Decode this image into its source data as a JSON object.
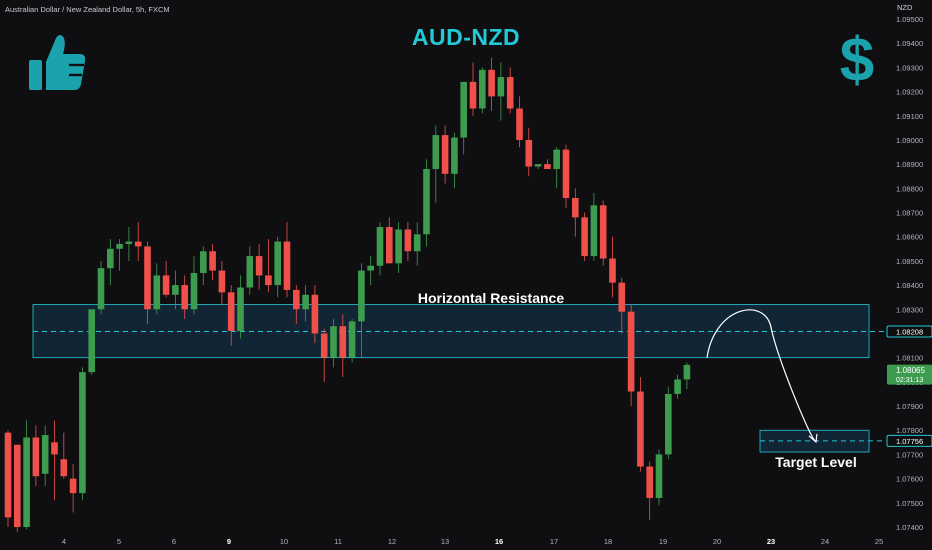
{
  "header": {
    "symbol_info": "Australian Dollar / New Zealand Dollar, 5h, FXCM",
    "title": "AUD-NZD"
  },
  "icons": {
    "left": "thumbs-up-icon",
    "right": "dollar-icon"
  },
  "colors": {
    "background": "#0f0f12",
    "bull": "#3e9c4f",
    "bear": "#f0504a",
    "accent": "#22c9d6",
    "zone_fill": "#12283a",
    "price_badge": "#3e9c4f"
  },
  "annotations": {
    "resistance_label": "Horizontal Resistance",
    "target_label": "Target Level"
  },
  "chart_data": {
    "type": "candlestick",
    "currency": "NZD",
    "ylim": [
      1.074,
      1.095
    ],
    "y_ticks": [
      "1.09500",
      "1.09400",
      "1.09300",
      "1.09200",
      "1.09100",
      "1.09000",
      "1.08900",
      "1.08800",
      "1.08700",
      "1.08600",
      "1.08500",
      "1.08400",
      "1.08300",
      "1.08200",
      "1.08100",
      "1.08000",
      "1.07900",
      "1.07800",
      "1.07700",
      "1.07600",
      "1.07500",
      "1.07400"
    ],
    "x_ticks": [
      {
        "label": "4",
        "bold": false
      },
      {
        "label": "5",
        "bold": false
      },
      {
        "label": "6",
        "bold": false
      },
      {
        "label": "9",
        "bold": true
      },
      {
        "label": "10",
        "bold": false
      },
      {
        "label": "11",
        "bold": false
      },
      {
        "label": "12",
        "bold": false
      },
      {
        "label": "13",
        "bold": false
      },
      {
        "label": "16",
        "bold": true
      },
      {
        "label": "17",
        "bold": false
      },
      {
        "label": "18",
        "bold": false
      },
      {
        "label": "19",
        "bold": false
      },
      {
        "label": "20",
        "bold": false
      },
      {
        "label": "23",
        "bold": true
      },
      {
        "label": "24",
        "bold": false
      },
      {
        "label": "25",
        "bold": false
      }
    ],
    "candles": [
      [
        1.0779,
        1.078,
        1.074,
        1.0744
      ],
      [
        1.0774,
        1.0774,
        1.0738,
        1.074
      ],
      [
        1.074,
        1.0784,
        1.0739,
        1.0777
      ],
      [
        1.0777,
        1.0782,
        1.0757,
        1.0761
      ],
      [
        1.0762,
        1.0782,
        1.0757,
        1.0778
      ],
      [
        1.0775,
        1.0784,
        1.0751,
        1.077
      ],
      [
        1.0768,
        1.0779,
        1.076,
        1.0761
      ],
      [
        1.076,
        1.0766,
        1.0746,
        1.0754
      ],
      [
        1.0754,
        1.0806,
        1.0751,
        1.0804
      ],
      [
        1.0804,
        1.083,
        1.0803,
        1.083
      ],
      [
        1.083,
        1.085,
        1.0828,
        1.0847
      ],
      [
        1.0847,
        1.0859,
        1.084,
        1.0855
      ],
      [
        1.0855,
        1.0859,
        1.0846,
        1.0857
      ],
      [
        1.0857,
        1.0864,
        1.085,
        1.0858
      ],
      [
        1.0858,
        1.0866,
        1.085,
        1.0856
      ],
      [
        1.0856,
        1.0858,
        1.0824,
        1.083
      ],
      [
        1.083,
        1.0849,
        1.0828,
        1.0844
      ],
      [
        1.0844,
        1.085,
        1.0835,
        1.0836
      ],
      [
        1.0836,
        1.0846,
        1.083,
        1.084
      ],
      [
        1.084,
        1.0844,
        1.0826,
        1.083
      ],
      [
        1.083,
        1.0852,
        1.0828,
        1.0845
      ],
      [
        1.0845,
        1.0856,
        1.084,
        1.0854
      ],
      [
        1.0854,
        1.0857,
        1.0842,
        1.0846
      ],
      [
        1.0846,
        1.085,
        1.0832,
        1.0837
      ],
      [
        1.0837,
        1.084,
        1.0815,
        1.0821
      ],
      [
        1.0821,
        1.0844,
        1.0818,
        1.0839
      ],
      [
        1.0839,
        1.0856,
        1.0836,
        1.0852
      ],
      [
        1.0852,
        1.0857,
        1.0838,
        1.0844
      ],
      [
        1.0844,
        1.0859,
        1.0837,
        1.084
      ],
      [
        1.084,
        1.086,
        1.0835,
        1.0858
      ],
      [
        1.0858,
        1.0866,
        1.0835,
        1.0838
      ],
      [
        1.0838,
        1.084,
        1.0824,
        1.083
      ],
      [
        1.083,
        1.084,
        1.0825,
        1.0836
      ],
      [
        1.0836,
        1.084,
        1.0816,
        1.082
      ],
      [
        1.082,
        1.0822,
        1.08,
        1.081
      ],
      [
        1.081,
        1.0826,
        1.0806,
        1.0823
      ],
      [
        1.0823,
        1.0828,
        1.0802,
        1.081
      ],
      [
        1.081,
        1.0826,
        1.0808,
        1.0825
      ],
      [
        1.0825,
        1.0849,
        1.081,
        1.0846
      ],
      [
        1.0846,
        1.0852,
        1.084,
        1.0848
      ],
      [
        1.0848,
        1.0866,
        1.0844,
        1.0864
      ],
      [
        1.0864,
        1.0868,
        1.0849,
        1.0849
      ],
      [
        1.0849,
        1.0866,
        1.0845,
        1.0863
      ],
      [
        1.0863,
        1.0866,
        1.085,
        1.0854
      ],
      [
        1.0854,
        1.0866,
        1.0848,
        1.0861
      ],
      [
        1.0861,
        1.0892,
        1.0856,
        1.0888
      ],
      [
        1.0888,
        1.0906,
        1.0874,
        1.0902
      ],
      [
        1.0902,
        1.0906,
        1.0882,
        1.0886
      ],
      [
        1.0886,
        1.0903,
        1.088,
        1.0901
      ],
      [
        1.0901,
        1.0924,
        1.0894,
        1.0924
      ],
      [
        1.0924,
        1.0932,
        1.091,
        1.0913
      ],
      [
        1.0913,
        1.093,
        1.0911,
        1.0929
      ],
      [
        1.0929,
        1.0934,
        1.0912,
        1.0918
      ],
      [
        1.0918,
        1.0932,
        1.0908,
        1.0926
      ],
      [
        1.0926,
        1.093,
        1.0911,
        1.0913
      ],
      [
        1.0913,
        1.0918,
        1.0897,
        1.09
      ],
      [
        1.09,
        1.0905,
        1.0885,
        1.0889
      ],
      [
        1.0889,
        1.089,
        1.0888,
        1.089
      ],
      [
        1.089,
        1.0892,
        1.0888,
        1.0888
      ],
      [
        1.0888,
        1.0897,
        1.088,
        1.0896
      ],
      [
        1.0896,
        1.0898,
        1.0872,
        1.0876
      ],
      [
        1.0876,
        1.088,
        1.086,
        1.0868
      ],
      [
        1.0868,
        1.087,
        1.085,
        1.0852
      ],
      [
        1.0852,
        1.0878,
        1.085,
        1.0873
      ],
      [
        1.0873,
        1.0875,
        1.0848,
        1.0851
      ],
      [
        1.0851,
        1.086,
        1.0835,
        1.0841
      ],
      [
        1.0841,
        1.0843,
        1.082,
        1.0829
      ],
      [
        1.0829,
        1.0832,
        1.079,
        1.0796
      ],
      [
        1.0796,
        1.0802,
        1.0763,
        1.0765
      ],
      [
        1.0765,
        1.0767,
        1.0743,
        1.0752
      ],
      [
        1.0752,
        1.0772,
        1.0749,
        1.077
      ],
      [
        1.077,
        1.0798,
        1.0768,
        1.0795
      ],
      [
        1.0795,
        1.0803,
        1.0793,
        1.0801
      ],
      [
        1.0801,
        1.0808,
        1.0797,
        1.0807
      ]
    ],
    "resistance_level": 1.08208,
    "resistance_zone": [
      1.081,
      1.0832
    ],
    "target_level": 1.07756,
    "target_zone": [
      1.0771,
      1.078
    ],
    "resistance_tag": "1.08208",
    "target_tag": "1.07756",
    "last_price": "1.08065",
    "countdown": "02:31:13",
    "projection": [
      [
        1.081,
        "start"
      ],
      [
        1.083,
        "peak"
      ],
      [
        1.07756,
        "end"
      ]
    ]
  }
}
